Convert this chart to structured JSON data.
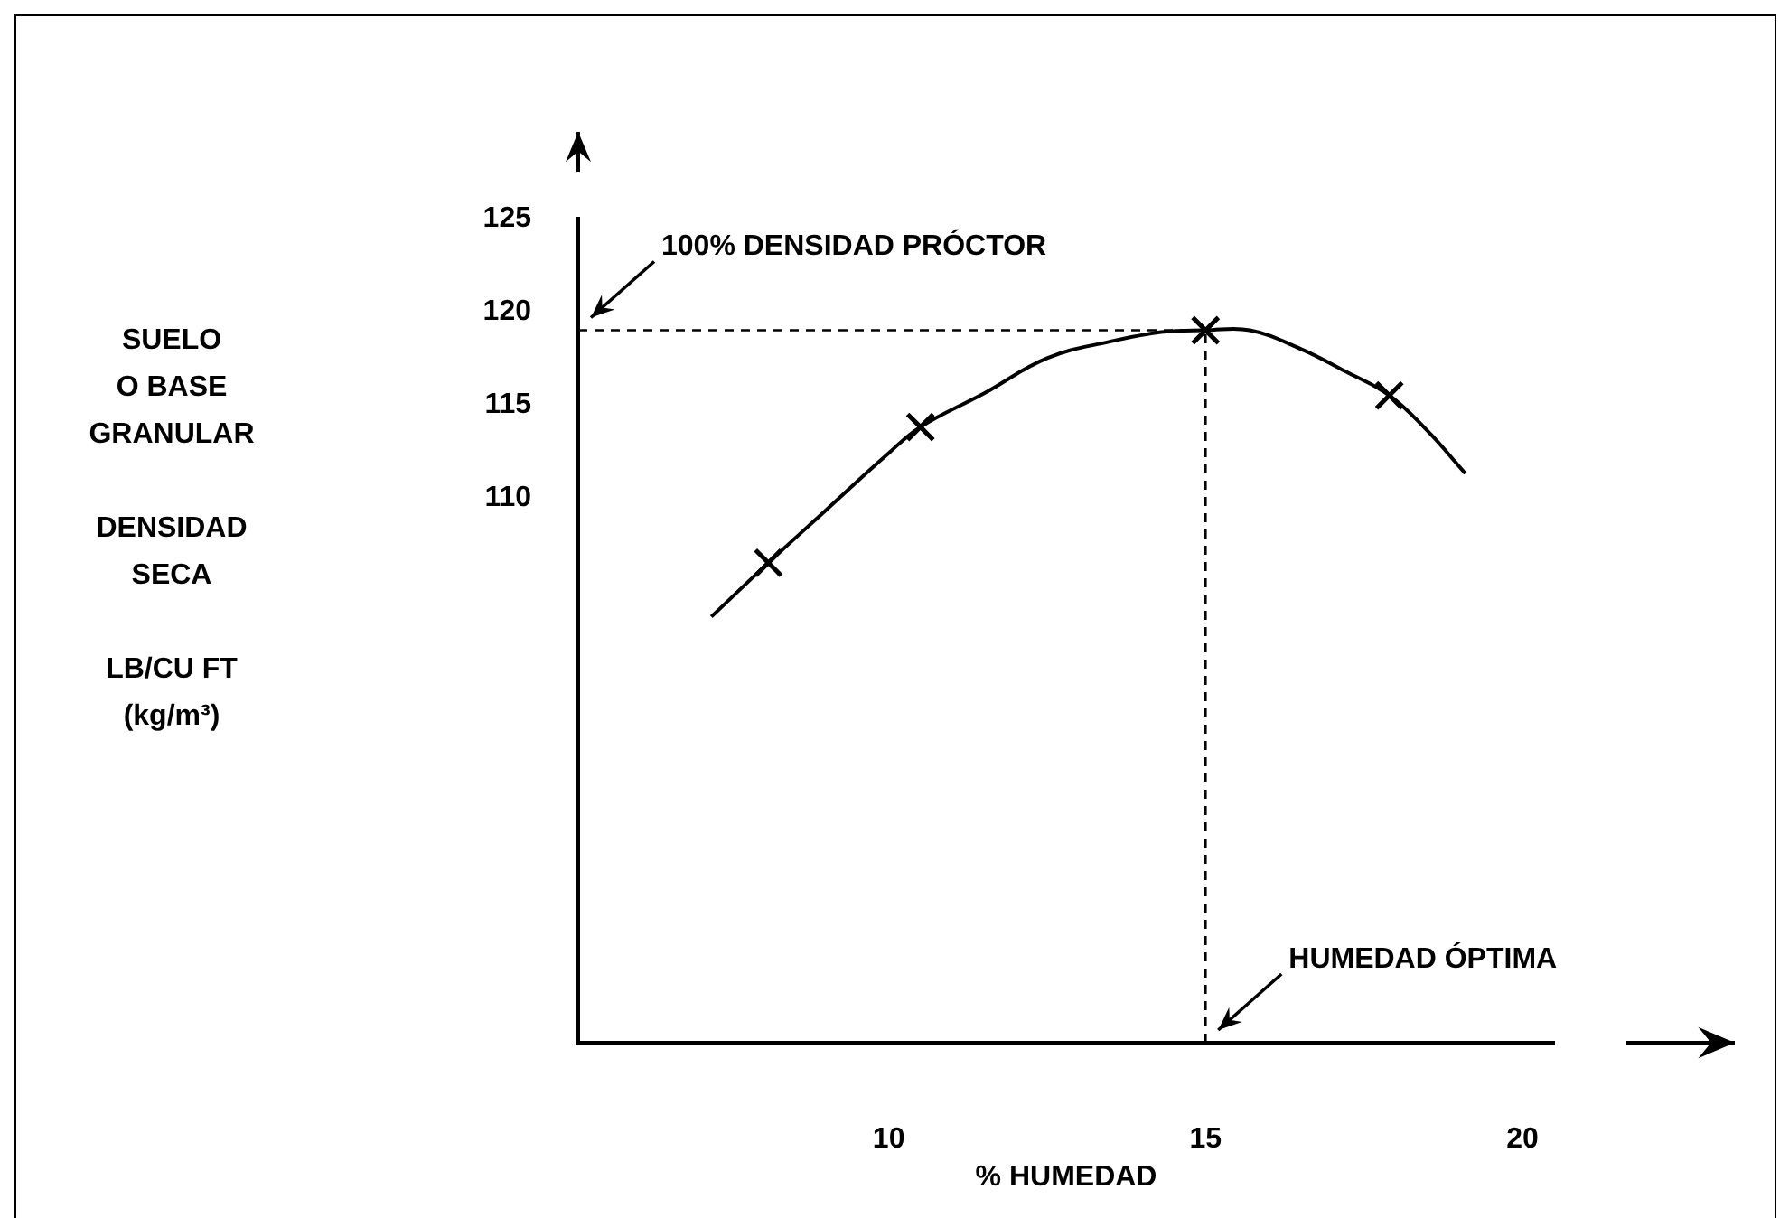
{
  "chart_data": {
    "type": "line",
    "xlabel": "% HUMEDAD",
    "ylabel": "SUELO\nO BASE\nGRANULAR\n\nDENSIDAD\nSECA\n\nLB/CU FT\n(kg/m³)",
    "xlim": [
      5.1,
      20.5
    ],
    "xticks": [
      10,
      15,
      20
    ],
    "ylim": [
      80.7,
      125
    ],
    "yticks": [
      110,
      115,
      120,
      125
    ],
    "series": [
      {
        "type": "line",
        "color": "#000000",
        "marker": "none",
        "line_style": "solid",
        "x": [
          7.2,
          8.1,
          9,
          10,
          10.5,
          11.5,
          12.5,
          13.5,
          14.3,
          15,
          15.7,
          16.5,
          17.2,
          17.9,
          18.5,
          19.1
        ],
        "values": [
          103.6,
          106.5,
          109.3,
          112.4,
          113.8,
          115.6,
          117.5,
          118.4,
          118.9,
          119,
          119,
          118,
          116.8,
          115.5,
          113.6,
          111.3
        ]
      },
      {
        "type": "scatter",
        "color": "#000000",
        "marker": "cross",
        "x": [
          8.1,
          10.5,
          15,
          17.9
        ],
        "values": [
          106.5,
          113.8,
          119,
          115.5
        ]
      }
    ],
    "ref_lines": [
      {
        "axis": "y",
        "value": 119,
        "line_style": "dashed"
      },
      {
        "axis": "x",
        "value": 15,
        "line_style": "dashed"
      }
    ],
    "annotations": [
      {
        "text": "100% DENSIDAD PRÓCTOR",
        "y": 119
      },
      {
        "text": "HUMEDAD ÓPTIMA",
        "x": 15
      }
    ],
    "legend": false,
    "grid": false
  }
}
